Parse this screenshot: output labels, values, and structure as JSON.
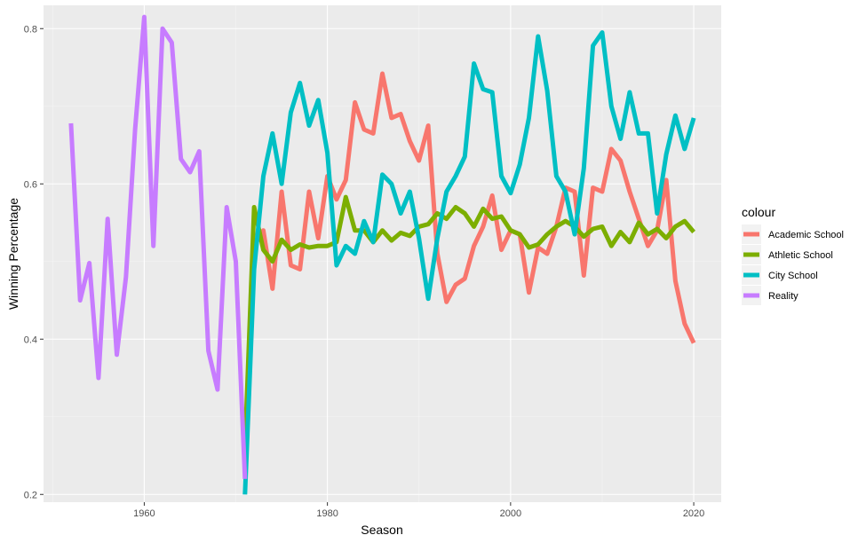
{
  "chart_data": {
    "type": "line",
    "xlabel": "Season",
    "ylabel": "Winning Percentage",
    "xlim": [
      1949,
      2023
    ],
    "ylim": [
      0.19,
      0.83
    ],
    "x_ticks": [
      1960,
      1980,
      2000,
      2020
    ],
    "x_tick_labels": [
      "1960",
      "1980",
      "2000",
      "2020"
    ],
    "y_ticks": [
      0.2,
      0.4,
      0.6,
      0.8
    ],
    "y_tick_labels": [
      "0.2",
      "0.4",
      "0.6",
      "0.8"
    ],
    "grid": true,
    "legend": {
      "title": "colour",
      "position": "right"
    },
    "series": [
      {
        "name": "Academic School",
        "color": "#F8766D",
        "x": [
          1972,
          1973,
          1974,
          1975,
          1976,
          1977,
          1978,
          1979,
          1980,
          1981,
          1982,
          1983,
          1984,
          1985,
          1986,
          1987,
          1988,
          1989,
          1990,
          1991,
          1992,
          1993,
          1994,
          1995,
          1996,
          1997,
          1998,
          1999,
          2000,
          2001,
          2002,
          2003,
          2004,
          2005,
          2006,
          2007,
          2008,
          2009,
          2010,
          2011,
          2012,
          2013,
          2014,
          2015,
          2016,
          2017,
          2018,
          2019,
          2020
        ],
        "y": [
          0.52,
          0.54,
          0.465,
          0.59,
          0.495,
          0.49,
          0.59,
          0.53,
          0.61,
          0.58,
          0.605,
          0.705,
          0.67,
          0.665,
          0.742,
          0.685,
          0.69,
          0.655,
          0.63,
          0.675,
          0.51,
          0.448,
          0.47,
          0.478,
          0.52,
          0.545,
          0.585,
          0.515,
          0.54,
          0.535,
          0.46,
          0.518,
          0.51,
          0.545,
          0.595,
          0.59,
          0.482,
          0.595,
          0.59,
          0.645,
          0.63,
          0.59,
          0.555,
          0.52,
          0.54,
          0.605,
          0.475,
          0.42,
          0.395
        ]
      },
      {
        "name": "Athletic School",
        "color": "#7CAE00",
        "x": [
          1971,
          1972,
          1973,
          1974,
          1975,
          1976,
          1977,
          1978,
          1979,
          1980,
          1981,
          1982,
          1983,
          1984,
          1985,
          1986,
          1987,
          1988,
          1989,
          1990,
          1991,
          1992,
          1993,
          1994,
          1995,
          1996,
          1997,
          1998,
          1999,
          2000,
          2001,
          2002,
          2003,
          2004,
          2005,
          2006,
          2007,
          2008,
          2009,
          2010,
          2011,
          2012,
          2013,
          2014,
          2015,
          2016,
          2017,
          2018,
          2019,
          2020
        ],
        "y": [
          0.26,
          0.57,
          0.515,
          0.5,
          0.528,
          0.515,
          0.522,
          0.518,
          0.52,
          0.52,
          0.525,
          0.583,
          0.54,
          0.54,
          0.525,
          0.54,
          0.527,
          0.537,
          0.533,
          0.545,
          0.548,
          0.562,
          0.555,
          0.57,
          0.562,
          0.545,
          0.568,
          0.555,
          0.558,
          0.54,
          0.535,
          0.518,
          0.522,
          0.535,
          0.545,
          0.552,
          0.545,
          0.532,
          0.542,
          0.545,
          0.52,
          0.538,
          0.525,
          0.55,
          0.535,
          0.542,
          0.53,
          0.545,
          0.552,
          0.538
        ]
      },
      {
        "name": "City School",
        "color": "#00BFC4",
        "x": [
          1971,
          1972,
          1973,
          1974,
          1975,
          1976,
          1977,
          1978,
          1979,
          1980,
          1981,
          1982,
          1983,
          1984,
          1985,
          1986,
          1987,
          1988,
          1989,
          1990,
          1991,
          1992,
          1993,
          1994,
          1995,
          1996,
          1997,
          1998,
          1999,
          2000,
          2001,
          2002,
          2003,
          2004,
          2005,
          2006,
          2007,
          2008,
          2009,
          2010,
          2011,
          2012,
          2013,
          2014,
          2015,
          2016,
          2017,
          2018,
          2019,
          2020
        ],
        "y": [
          0.2,
          0.49,
          0.61,
          0.665,
          0.6,
          0.692,
          0.73,
          0.675,
          0.708,
          0.64,
          0.495,
          0.52,
          0.51,
          0.552,
          0.525,
          0.612,
          0.6,
          0.562,
          0.59,
          0.53,
          0.452,
          0.53,
          0.59,
          0.61,
          0.635,
          0.755,
          0.722,
          0.718,
          0.61,
          0.588,
          0.625,
          0.685,
          0.79,
          0.72,
          0.61,
          0.59,
          0.535,
          0.62,
          0.778,
          0.795,
          0.7,
          0.658,
          0.718,
          0.665,
          0.665,
          0.562,
          0.638,
          0.688,
          0.645,
          0.685
        ]
      },
      {
        "name": "Reality",
        "color": "#C77CFF",
        "x": [
          1952,
          1953,
          1954,
          1955,
          1956,
          1957,
          1958,
          1959,
          1960,
          1961,
          1962,
          1963,
          1964,
          1965,
          1966,
          1967,
          1968,
          1969,
          1970,
          1971
        ],
        "y": [
          0.678,
          0.45,
          0.498,
          0.35,
          0.555,
          0.38,
          0.48,
          0.67,
          0.815,
          0.52,
          0.8,
          0.782,
          0.632,
          0.615,
          0.642,
          0.385,
          0.335,
          0.57,
          0.5,
          0.22
        ]
      }
    ]
  }
}
